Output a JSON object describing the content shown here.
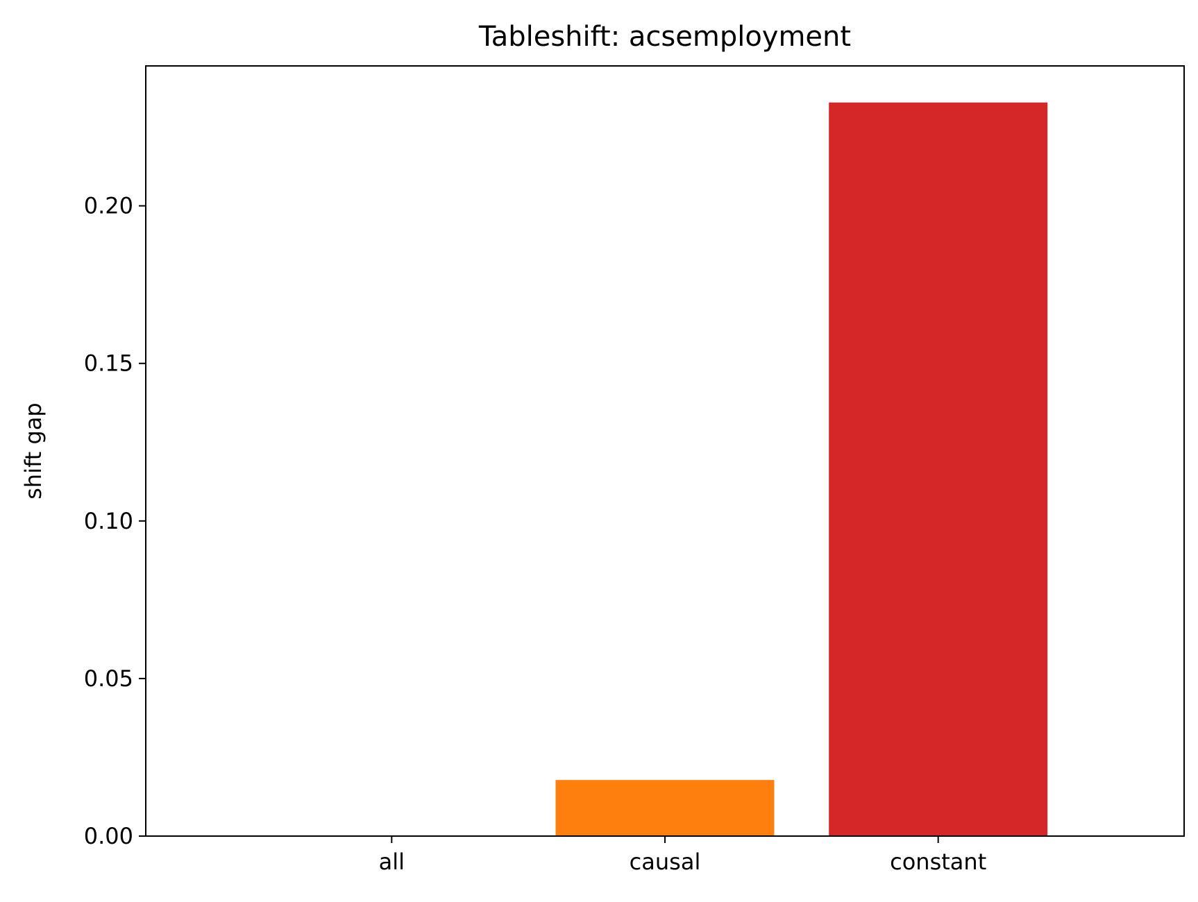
{
  "chart_data": {
    "type": "bar",
    "title": "Tableshift: acsemployment",
    "xlabel": "",
    "ylabel": "shift gap",
    "categories": [
      "all",
      "causal",
      "constant"
    ],
    "values": [
      0.0,
      0.0178,
      0.2328
    ],
    "colors": [
      "#1f77b4",
      "#ff7f0e",
      "#d62728"
    ],
    "ylim": [
      0,
      0.2444
    ],
    "yticks": [
      0.0,
      0.05,
      0.1,
      0.15,
      0.2
    ],
    "ytick_labels": [
      "0.00",
      "0.05",
      "0.10",
      "0.15",
      "0.20"
    ],
    "grid": false,
    "legend": "none"
  }
}
